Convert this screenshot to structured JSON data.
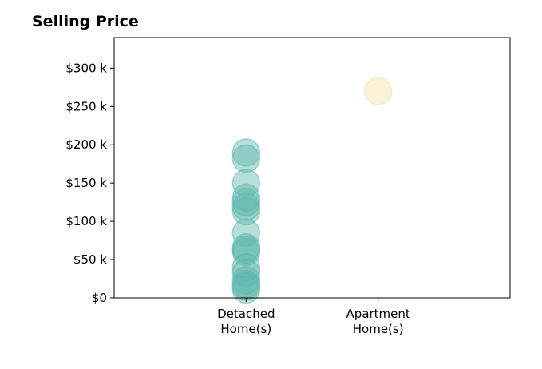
{
  "chart_data": {
    "type": "scatter",
    "title": "Selling Price",
    "xlabel": "",
    "ylabel": "",
    "categories": [
      "Detached\nHome(s)",
      "Apartment\nHome(s)"
    ],
    "xlim": [
      -1,
      2
    ],
    "ylim": [
      0,
      340000
    ],
    "yticks": [
      0,
      50000,
      100000,
      150000,
      200000,
      250000,
      300000
    ],
    "ytick_labels": [
      "$0",
      "$50 k",
      "$100 k",
      "$150 k",
      "$200 k",
      "$250 k",
      "$300 k"
    ],
    "grid": false,
    "series": [
      {
        "category_index": 0,
        "color": "#5fb8ad",
        "values": [
          190000,
          182000,
          150000,
          131000,
          125000,
          119000,
          113000,
          85000,
          66000,
          63000,
          60000,
          40000,
          33000,
          23000,
          18000,
          15000,
          11000
        ]
      },
      {
        "category_index": 1,
        "color": "#f5dfa6",
        "values": [
          270000
        ]
      }
    ]
  }
}
